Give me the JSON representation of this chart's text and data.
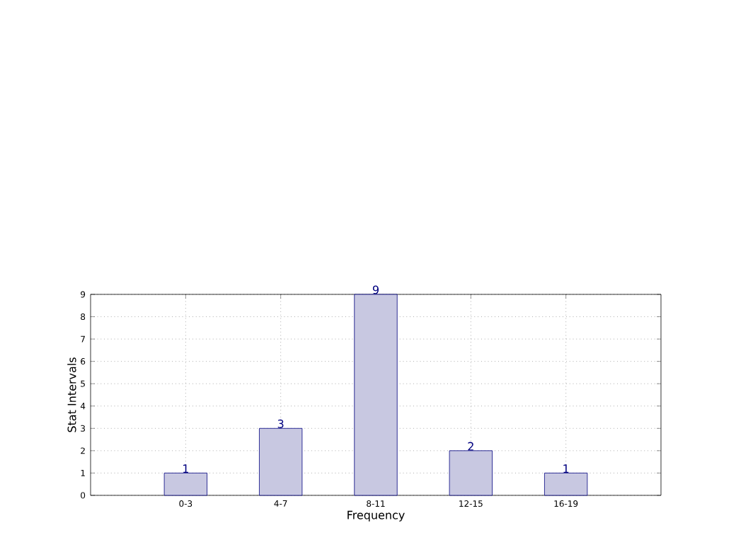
{
  "chart_data": {
    "type": "bar",
    "xlabel": "Frequency",
    "ylabel": "Stat Intervals",
    "categories": [
      "0-3",
      "4-7",
      "8-11",
      "12-15",
      "16-19"
    ],
    "values": [
      1,
      3,
      9,
      2,
      1
    ],
    "color": "#c8c8e1",
    "ylim": [
      0,
      9
    ],
    "yticks": [
      0,
      1,
      2,
      3,
      4,
      5,
      6,
      7,
      8,
      9
    ],
    "grid": true,
    "data_labels": true
  }
}
